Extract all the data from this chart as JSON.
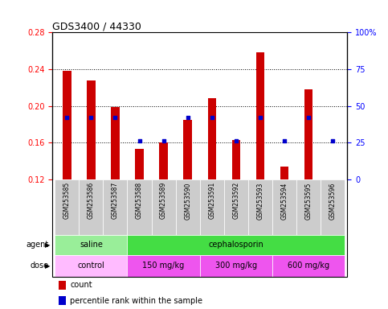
{
  "title": "GDS3400 / 44330",
  "samples": [
    "GSM253585",
    "GSM253586",
    "GSM253587",
    "GSM253588",
    "GSM253589",
    "GSM253590",
    "GSM253591",
    "GSM253592",
    "GSM253593",
    "GSM253594",
    "GSM253595",
    "GSM253596"
  ],
  "count_values": [
    0.238,
    0.228,
    0.199,
    0.153,
    0.16,
    0.185,
    0.208,
    0.163,
    0.258,
    0.134,
    0.218,
    0.12
  ],
  "percentile_values": [
    42,
    42,
    42,
    26,
    26,
    42,
    42,
    26,
    42,
    26,
    42,
    26
  ],
  "bar_bottom": 0.12,
  "ylim_left": [
    0.12,
    0.28
  ],
  "ylim_right": [
    0,
    100
  ],
  "yticks_left": [
    0.12,
    0.16,
    0.2,
    0.24,
    0.28
  ],
  "yticks_right": [
    0,
    25,
    50,
    75,
    100
  ],
  "dotted_lines": [
    0.16,
    0.2,
    0.24
  ],
  "bar_color": "#cc0000",
  "percentile_color": "#0000cc",
  "agent_groups": [
    {
      "label": "saline",
      "start": 0,
      "end": 3,
      "color": "#99ee99"
    },
    {
      "label": "cephalosporin",
      "start": 3,
      "end": 12,
      "color": "#44dd44"
    }
  ],
  "dose_groups": [
    {
      "label": "control",
      "start": 0,
      "end": 3,
      "color": "#ffbbff"
    },
    {
      "label": "150 mg/kg",
      "start": 3,
      "end": 6,
      "color": "#ee55ee"
    },
    {
      "label": "300 mg/kg",
      "start": 6,
      "end": 9,
      "color": "#ee55ee"
    },
    {
      "label": "600 mg/kg",
      "start": 9,
      "end": 12,
      "color": "#ee55ee"
    }
  ],
  "legend_count_color": "#cc0000",
  "legend_percentile_color": "#0000cc",
  "tick_bg_color": "#cccccc",
  "spine_color": "#000000"
}
